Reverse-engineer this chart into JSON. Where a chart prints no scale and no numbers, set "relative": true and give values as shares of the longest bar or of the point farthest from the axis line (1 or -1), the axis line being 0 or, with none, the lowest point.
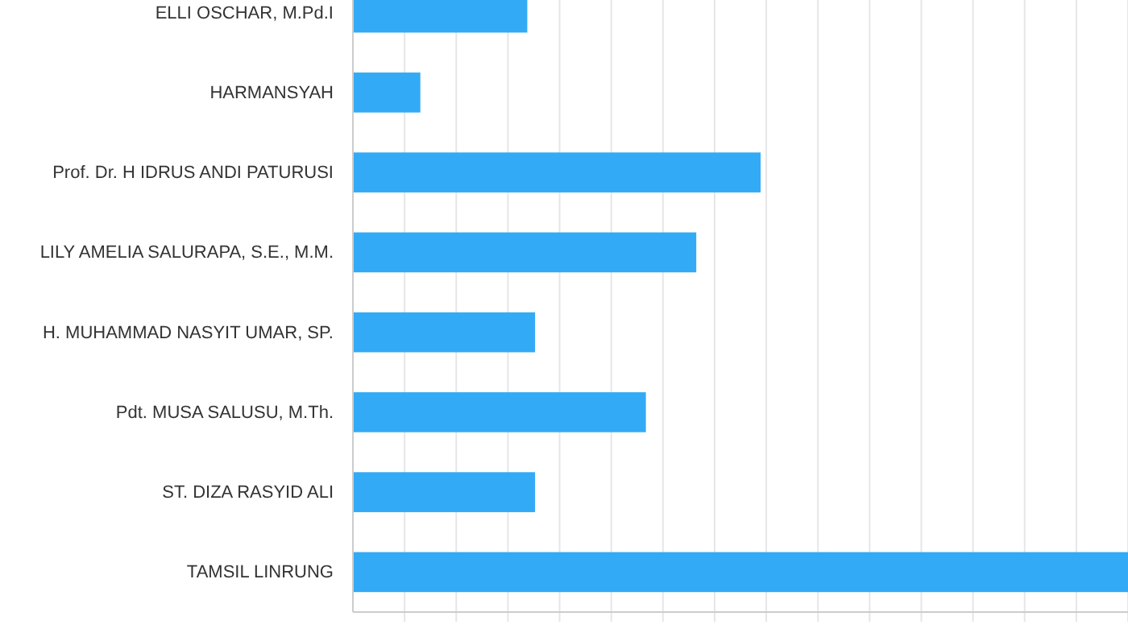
{
  "chart_data": {
    "type": "bar",
    "orientation": "horizontal",
    "relative": true,
    "grid": "x",
    "categories": [
      "ELLI OSCHAR, M.Pd.I",
      "HARMANSYAH",
      "Prof. Dr. H IDRUS ANDI PATURUSI",
      "LILY AMELIA SALURAPA, S.E., M.M.",
      "H. MUHAMMAD NASYIT UMAR, SP.",
      "Pdt. MUSA SALUSU, M.Th.",
      "ST. DIZA RASYID ALI",
      "TAMSIL LINRUNG"
    ],
    "values": [
      0.225,
      0.087,
      0.526,
      0.443,
      0.235,
      0.378,
      0.235,
      1
    ],
    "color": "#33aaf5"
  }
}
